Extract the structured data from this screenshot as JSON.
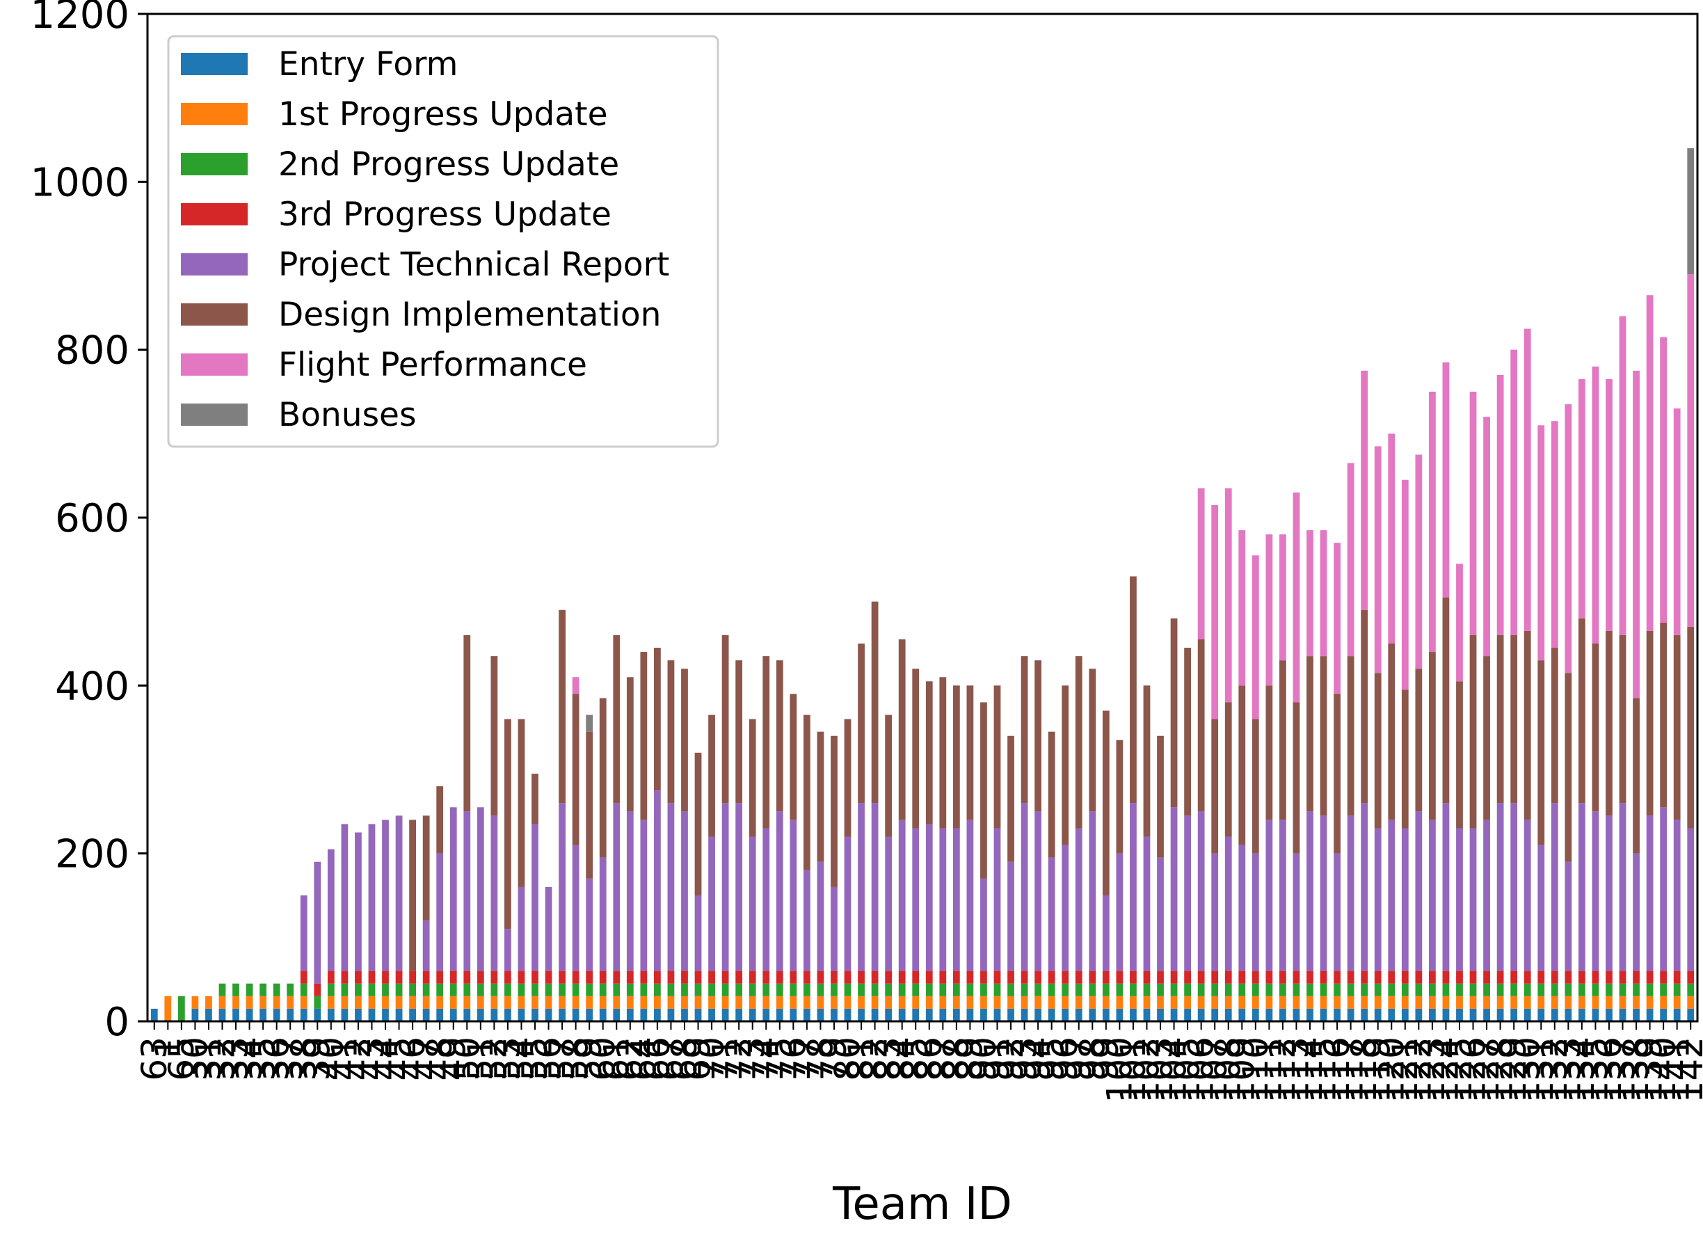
{
  "chart_data": {
    "type": "bar",
    "stacked": true,
    "title": "",
    "xlabel": "Team ID",
    "ylabel": "",
    "ylim": [
      0,
      1200
    ],
    "yticks": [
      0,
      200,
      400,
      600,
      800,
      1000,
      1200
    ],
    "grid": false,
    "legend_position": "top-left",
    "colors": {
      "Entry Form": "#1f77b4",
      "1st Progress Update": "#ff7f0e",
      "2nd Progress Update": "#2ca02c",
      "3rd Progress Update": "#d62728",
      "Project Technical Report": "#9467bd",
      "Design Implementation": "#8c564b",
      "Flight Performance": "#e377c2",
      "Bonuses": "#7f7f7f"
    },
    "categories": [
      "63",
      "1",
      "65",
      "30",
      "31",
      "32",
      "33",
      "34",
      "35",
      "36",
      "37",
      "38",
      "39",
      "40",
      "41",
      "42",
      "43",
      "44",
      "45",
      "46",
      "47",
      "48",
      "49",
      "50",
      "51",
      "52",
      "53",
      "54",
      "55",
      "56",
      "57",
      "58",
      "59",
      "60",
      "61",
      "62",
      "64",
      "66",
      "67",
      "68",
      "69",
      "70",
      "71",
      "72",
      "73",
      "74",
      "75",
      "76",
      "77",
      "78",
      "79",
      "80",
      "81",
      "82",
      "83",
      "84",
      "85",
      "86",
      "87",
      "88",
      "89",
      "90",
      "91",
      "92",
      "93",
      "94",
      "95",
      "96",
      "97",
      "98",
      "99",
      "100",
      "101",
      "102",
      "103",
      "104",
      "105",
      "106",
      "107",
      "108",
      "109",
      "110",
      "111",
      "112",
      "113",
      "114",
      "115",
      "116",
      "117",
      "118",
      "119",
      "120",
      "121",
      "122",
      "123",
      "124",
      "125",
      "126",
      "127",
      "128",
      "129",
      "130",
      "131",
      "132",
      "133",
      "134",
      "135",
      "136",
      "137",
      "138",
      "139",
      "140",
      "141",
      "142"
    ],
    "series": [
      {
        "name": "Entry Form",
        "values": [
          15,
          0,
          0,
          15,
          15,
          15,
          15,
          15,
          15,
          15,
          15,
          15,
          15,
          15,
          15,
          15,
          15,
          15,
          15,
          15,
          15,
          15,
          15,
          15,
          15,
          15,
          15,
          15,
          15,
          15,
          15,
          15,
          15,
          15,
          15,
          15,
          15,
          15,
          15,
          15,
          15,
          15,
          15,
          15,
          15,
          15,
          15,
          15,
          15,
          15,
          15,
          15,
          15,
          15,
          15,
          15,
          15,
          15,
          15,
          15,
          15,
          15,
          15,
          15,
          15,
          15,
          15,
          15,
          15,
          15,
          15,
          15,
          15,
          15,
          15,
          15,
          15,
          15,
          15,
          15,
          15,
          15,
          15,
          15,
          15,
          15,
          15,
          15,
          15,
          15,
          15,
          15,
          15,
          15,
          15,
          15,
          15,
          15,
          15,
          15,
          15,
          15,
          15,
          15,
          15,
          15,
          15,
          15,
          15,
          15,
          15,
          15,
          15,
          15
        ]
      },
      {
        "name": "1st Progress Update",
        "values": [
          0,
          30,
          0,
          15,
          15,
          15,
          15,
          15,
          15,
          15,
          15,
          15,
          0,
          15,
          15,
          15,
          15,
          15,
          15,
          15,
          15,
          15,
          15,
          15,
          15,
          15,
          15,
          15,
          15,
          15,
          15,
          15,
          15,
          15,
          15,
          15,
          15,
          15,
          15,
          15,
          15,
          15,
          15,
          15,
          15,
          15,
          15,
          15,
          15,
          15,
          15,
          15,
          15,
          15,
          15,
          15,
          15,
          15,
          15,
          15,
          15,
          15,
          15,
          15,
          15,
          15,
          15,
          15,
          15,
          15,
          15,
          15,
          15,
          15,
          15,
          15,
          15,
          15,
          15,
          15,
          15,
          15,
          15,
          15,
          15,
          15,
          15,
          15,
          15,
          15,
          15,
          15,
          15,
          15,
          15,
          15,
          15,
          15,
          15,
          15,
          15,
          15,
          15,
          15,
          15,
          15,
          15,
          15,
          15,
          15,
          15,
          15,
          15,
          15
        ]
      },
      {
        "name": "2nd Progress Update",
        "values": [
          0,
          0,
          30,
          0,
          0,
          15,
          15,
          15,
          15,
          15,
          15,
          15,
          15,
          15,
          15,
          15,
          15,
          15,
          15,
          15,
          15,
          15,
          15,
          15,
          15,
          15,
          15,
          15,
          15,
          15,
          15,
          15,
          15,
          15,
          15,
          15,
          15,
          15,
          15,
          15,
          15,
          15,
          15,
          15,
          15,
          15,
          15,
          15,
          15,
          15,
          15,
          15,
          15,
          15,
          15,
          15,
          15,
          15,
          15,
          15,
          15,
          15,
          15,
          15,
          15,
          15,
          15,
          15,
          15,
          15,
          15,
          15,
          15,
          15,
          15,
          15,
          15,
          15,
          15,
          15,
          15,
          15,
          15,
          15,
          15,
          15,
          15,
          15,
          15,
          15,
          15,
          15,
          15,
          15,
          15,
          15,
          15,
          15,
          15,
          15,
          15,
          15,
          15,
          15,
          15,
          15,
          15,
          15,
          15,
          15,
          15,
          15,
          15,
          15
        ]
      },
      {
        "name": "3rd Progress Update",
        "values": [
          0,
          0,
          0,
          0,
          0,
          0,
          0,
          0,
          0,
          0,
          0,
          15,
          15,
          15,
          15,
          15,
          15,
          15,
          15,
          15,
          15,
          15,
          15,
          15,
          15,
          15,
          15,
          15,
          15,
          15,
          15,
          15,
          15,
          15,
          15,
          15,
          15,
          15,
          15,
          15,
          15,
          15,
          15,
          15,
          15,
          15,
          15,
          15,
          15,
          15,
          15,
          15,
          15,
          15,
          15,
          15,
          15,
          15,
          15,
          15,
          15,
          15,
          15,
          15,
          15,
          15,
          15,
          15,
          15,
          15,
          15,
          15,
          15,
          15,
          15,
          15,
          15,
          15,
          15,
          15,
          15,
          15,
          15,
          15,
          15,
          15,
          15,
          15,
          15,
          15,
          15,
          15,
          15,
          15,
          15,
          15,
          15,
          15,
          15,
          15,
          15,
          15,
          15,
          15,
          15,
          15,
          15,
          15,
          15,
          15,
          15,
          15,
          15,
          15
        ]
      },
      {
        "name": "Project Technical Report",
        "values": [
          0,
          0,
          0,
          0,
          0,
          0,
          0,
          0,
          0,
          0,
          0,
          90,
          145,
          145,
          175,
          165,
          175,
          180,
          185,
          0,
          60,
          140,
          195,
          190,
          195,
          185,
          50,
          100,
          175,
          100,
          200,
          150,
          110,
          135,
          200,
          190,
          180,
          215,
          200,
          190,
          90,
          160,
          200,
          200,
          160,
          170,
          190,
          180,
          120,
          130,
          100,
          160,
          200,
          200,
          160,
          180,
          170,
          175,
          170,
          170,
          180,
          110,
          170,
          130,
          200,
          190,
          135,
          150,
          170,
          190,
          90,
          140,
          200,
          160,
          135,
          195,
          185,
          190,
          140,
          160,
          150,
          140,
          180,
          180,
          140,
          190,
          185,
          140,
          185,
          200,
          170,
          180,
          170,
          190,
          180,
          200,
          170,
          170,
          180,
          200,
          200,
          180,
          150,
          200,
          130,
          200,
          190,
          185,
          200,
          140,
          185,
          195,
          180,
          170
        ]
      },
      {
        "name": "Design Implementation",
        "values": [
          0,
          0,
          0,
          0,
          0,
          0,
          0,
          0,
          0,
          0,
          0,
          0,
          0,
          0,
          0,
          0,
          0,
          0,
          0,
          180,
          125,
          80,
          0,
          210,
          0,
          190,
          250,
          200,
          60,
          0,
          230,
          180,
          175,
          190,
          200,
          160,
          200,
          170,
          170,
          170,
          170,
          145,
          200,
          170,
          140,
          205,
          180,
          150,
          185,
          155,
          180,
          140,
          190,
          240,
          145,
          215,
          190,
          170,
          180,
          170,
          160,
          210,
          170,
          150,
          175,
          180,
          150,
          190,
          205,
          170,
          220,
          135,
          270,
          180,
          145,
          225,
          200,
          205,
          160,
          160,
          190,
          160,
          160,
          190,
          180,
          185,
          190,
          190,
          190,
          230,
          185,
          210,
          165,
          170,
          200,
          245,
          175,
          230,
          195,
          200,
          200,
          225,
          220,
          185,
          225,
          220,
          200,
          220,
          200,
          185,
          220,
          220,
          220,
          240
        ]
      },
      {
        "name": "Flight Performance",
        "values": [
          0,
          0,
          0,
          0,
          0,
          0,
          0,
          0,
          0,
          0,
          0,
          0,
          0,
          0,
          0,
          0,
          0,
          0,
          0,
          0,
          0,
          0,
          0,
          0,
          0,
          0,
          0,
          0,
          0,
          0,
          0,
          20,
          0,
          0,
          0,
          0,
          0,
          0,
          0,
          0,
          0,
          0,
          0,
          0,
          0,
          0,
          0,
          0,
          0,
          0,
          0,
          0,
          0,
          0,
          0,
          0,
          0,
          0,
          0,
          0,
          0,
          0,
          0,
          0,
          0,
          0,
          0,
          0,
          0,
          0,
          0,
          0,
          0,
          0,
          0,
          0,
          0,
          180,
          255,
          255,
          185,
          195,
          180,
          150,
          250,
          150,
          150,
          180,
          230,
          285,
          270,
          250,
          250,
          255,
          310,
          280,
          140,
          290,
          285,
          310,
          340,
          360,
          280,
          270,
          320,
          285,
          330,
          300,
          380,
          390,
          400,
          340,
          270,
          420
        ]
      },
      {
        "name": "Bonuses",
        "values": [
          0,
          0,
          0,
          0,
          0,
          0,
          0,
          0,
          0,
          0,
          0,
          0,
          0,
          0,
          0,
          0,
          0,
          0,
          0,
          0,
          0,
          0,
          0,
          0,
          0,
          0,
          0,
          0,
          0,
          0,
          0,
          0,
          20,
          0,
          0,
          0,
          0,
          0,
          0,
          0,
          0,
          0,
          0,
          0,
          0,
          0,
          0,
          0,
          0,
          0,
          0,
          0,
          0,
          0,
          0,
          0,
          0,
          0,
          0,
          0,
          0,
          0,
          0,
          0,
          0,
          0,
          0,
          0,
          0,
          0,
          0,
          0,
          0,
          0,
          0,
          0,
          0,
          0,
          0,
          0,
          0,
          0,
          0,
          0,
          0,
          0,
          0,
          0,
          0,
          0,
          0,
          0,
          0,
          0,
          0,
          0,
          0,
          0,
          0,
          0,
          0,
          0,
          0,
          0,
          0,
          0,
          0,
          0,
          0,
          0,
          0,
          0,
          0,
          150
        ]
      }
    ]
  }
}
